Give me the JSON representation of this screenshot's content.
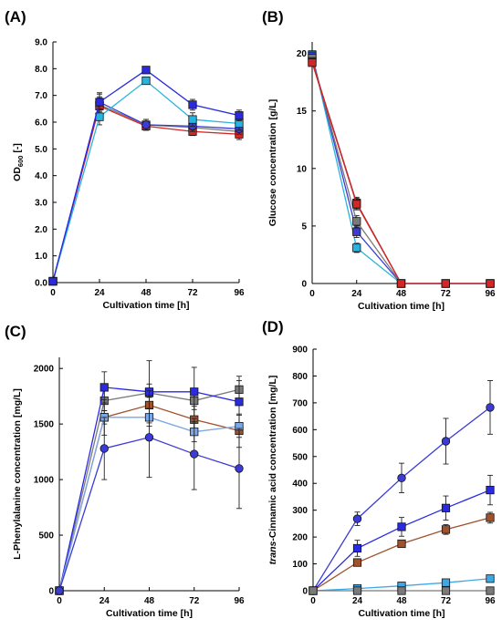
{
  "chart_data": [
    {
      "type": "line",
      "panel": "(A)",
      "xlabel": "Cultivation time [h]",
      "ylabel": "OD",
      "ylabel_sub": "600",
      "ylabel_suffix": " [-]",
      "x": [
        0,
        24,
        48,
        72,
        96
      ],
      "xlim": [
        0,
        96
      ],
      "ylim": [
        0,
        9
      ],
      "xticks": [
        "0",
        "24",
        "48",
        "72",
        "96"
      ],
      "yticks": [
        "0.0",
        "1.0",
        "2.0",
        "3.0",
        "4.0",
        "5.0",
        "6.0",
        "7.0",
        "8.0",
        "9.0"
      ],
      "series": [
        {
          "color": "#7a7a7a",
          "marker": "square",
          "values": [
            0.05,
            6.65,
            5.9,
            5.8,
            5.65
          ],
          "err": [
            0,
            0.3,
            0.2,
            0.2,
            0.2
          ]
        },
        {
          "color": "#d32626",
          "marker": "square",
          "values": [
            0.05,
            6.6,
            5.85,
            5.65,
            5.55
          ],
          "err": [
            0,
            0.3,
            0.15,
            0.15,
            0.2
          ]
        },
        {
          "color": "#3b3bd6",
          "marker": "circle",
          "values": [
            0.05,
            6.75,
            5.9,
            5.85,
            5.75
          ],
          "err": [
            0,
            0.35,
            0.2,
            0.2,
            0.2
          ]
        },
        {
          "color": "#28b4e0",
          "marker": "square",
          "values": [
            0.05,
            6.2,
            7.55,
            6.1,
            5.95
          ],
          "err": [
            0,
            0.3,
            0.1,
            0.25,
            0.25
          ]
        },
        {
          "color": "#2a2ae0",
          "marker": "square",
          "values": [
            0.05,
            6.75,
            7.95,
            6.65,
            6.25
          ],
          "err": [
            0,
            0.3,
            0.1,
            0.2,
            0.2
          ]
        }
      ]
    },
    {
      "type": "line",
      "panel": "(B)",
      "xlabel": "Cultivation time [h]",
      "ylabel": "Glucose concentration [g/L]",
      "x": [
        0,
        24,
        48,
        72,
        96
      ],
      "xlim": [
        0,
        96
      ],
      "ylim": [
        0,
        21
      ],
      "xticks": [
        "0",
        "24",
        "48",
        "72",
        "96"
      ],
      "yticks": [
        "0",
        "5",
        "10",
        "15",
        "20"
      ],
      "ytick_values": [
        0,
        5,
        10,
        15,
        20
      ],
      "series": [
        {
          "color": "#28b4e0",
          "marker": "square",
          "values": [
            19.9,
            3.1,
            0,
            0,
            0
          ],
          "err": [
            0,
            0.4,
            0,
            0,
            0
          ]
        },
        {
          "color": "#3b3bd6",
          "marker": "square",
          "values": [
            19.8,
            4.5,
            0,
            0,
            0
          ],
          "err": [
            0,
            0.5,
            0,
            0,
            0
          ]
        },
        {
          "color": "#7a7a7a",
          "marker": "square",
          "values": [
            19.6,
            5.4,
            0,
            0,
            0
          ],
          "err": [
            0,
            0.5,
            0,
            0,
            0
          ]
        },
        {
          "color": "#8b2a3a",
          "marker": "square",
          "values": [
            19.3,
            7.0,
            0,
            0,
            0
          ],
          "err": [
            0,
            0.5,
            0,
            0,
            0
          ]
        },
        {
          "color": "#d32626",
          "marker": "square",
          "values": [
            19.2,
            6.9,
            0,
            0,
            0
          ],
          "err": [
            0,
            0.5,
            0,
            0,
            0
          ]
        }
      ]
    },
    {
      "type": "line",
      "panel": "(C)",
      "xlabel": "Cultivation time [h]",
      "ylabel": "L-Phenylalanine concentration [mg/L]",
      "x": [
        0,
        24,
        48,
        72,
        96
      ],
      "xlim": [
        0,
        96
      ],
      "ylim": [
        0,
        2100
      ],
      "xticks": [
        "0",
        "24",
        "48",
        "72",
        "96"
      ],
      "yticks": [
        "0",
        "500",
        "1000",
        "1500",
        "2000"
      ],
      "ytick_values": [
        0,
        500,
        1000,
        1500,
        2000
      ],
      "series": [
        {
          "color": "#7a7a7a",
          "marker": "square",
          "values": [
            0,
            1710,
            1780,
            1710,
            1810
          ],
          "err": [
            0,
            90,
            80,
            80,
            80
          ]
        },
        {
          "color": "#2a2ae0",
          "marker": "square",
          "values": [
            0,
            1830,
            1790,
            1790,
            1700
          ],
          "err": [
            0,
            140,
            280,
            220,
            230
          ]
        },
        {
          "color": "#a0522d",
          "marker": "square",
          "values": [
            0,
            1560,
            1670,
            1540,
            1440
          ],
          "err": [
            0,
            160,
            130,
            120,
            150
          ]
        },
        {
          "color": "#7aa8e8",
          "marker": "square",
          "values": [
            0,
            1560,
            1560,
            1430,
            1480
          ],
          "err": [
            0,
            60,
            80,
            90,
            100
          ]
        },
        {
          "color": "#3b3bd6",
          "marker": "circle",
          "values": [
            0,
            1280,
            1380,
            1230,
            1100
          ],
          "err": [
            0,
            280,
            360,
            320,
            360
          ]
        }
      ]
    },
    {
      "type": "line",
      "panel": "(D)",
      "xlabel": "Cultivation time [h]",
      "ylabel_italic": "trans",
      "ylabel": "-Cinnamic acid concentration [mg/L]",
      "x": [
        0,
        24,
        48,
        72,
        96
      ],
      "xlim": [
        0,
        96
      ],
      "ylim": [
        0,
        900
      ],
      "xticks": [
        "0",
        "24",
        "48",
        "72",
        "96"
      ],
      "yticks": [
        "0",
        "100",
        "200",
        "300",
        "400",
        "500",
        "600",
        "700",
        "800",
        "900"
      ],
      "ytick_values": [
        0,
        100,
        200,
        300,
        400,
        500,
        600,
        700,
        800,
        900
      ],
      "series": [
        {
          "color": "#3b3bd6",
          "marker": "circle",
          "values": [
            0,
            268,
            420,
            557,
            683
          ],
          "err": [
            0,
            25,
            55,
            85,
            100
          ]
        },
        {
          "color": "#2a2ae0",
          "marker": "square",
          "values": [
            0,
            158,
            238,
            308,
            375
          ],
          "err": [
            0,
            30,
            35,
            45,
            55
          ]
        },
        {
          "color": "#a0522d",
          "marker": "square",
          "values": [
            0,
            105,
            175,
            228,
            272
          ],
          "err": [
            0,
            10,
            12,
            18,
            20
          ]
        },
        {
          "color": "#3ea8e6",
          "marker": "square",
          "values": [
            0,
            8,
            18,
            30,
            45
          ],
          "err": [
            0,
            3,
            4,
            5,
            6
          ]
        },
        {
          "color": "#7a7a7a",
          "marker": "square",
          "values": [
            0,
            0,
            0,
            0,
            0
          ],
          "err": [
            0,
            0,
            0,
            0,
            0
          ]
        }
      ]
    }
  ]
}
